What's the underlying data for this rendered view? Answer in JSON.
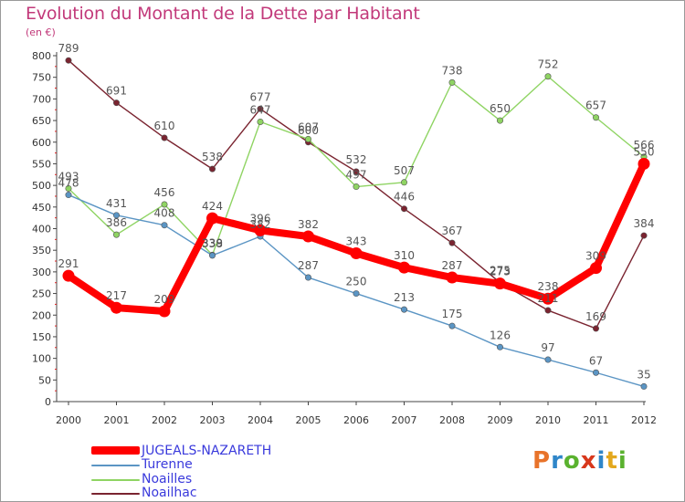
{
  "title": "Evolution du Montant de la Dette par Habitant",
  "unit_label": "(en €)",
  "logo": {
    "text": "Proxiti",
    "colors": [
      "#e8732a",
      "#2f86c9",
      "#5ab22f",
      "#d8381c",
      "#2f86c9",
      "#e3a81e",
      "#5ab22f"
    ]
  },
  "chart_data": {
    "type": "line",
    "title": "Evolution du Montant de la Dette par Habitant",
    "ylabel": "(en €)",
    "xlabel": "",
    "x": [
      "2000",
      "2001",
      "2002",
      "2003",
      "2004",
      "2005",
      "2006",
      "2007",
      "2008",
      "2009",
      "2010",
      "2011",
      "2012"
    ],
    "ylim": [
      0,
      800
    ],
    "yticks": [
      0,
      50,
      100,
      150,
      200,
      250,
      300,
      350,
      400,
      450,
      500,
      550,
      600,
      650,
      700,
      750,
      800
    ],
    "grid": false,
    "legend_position": "bottom-left",
    "series": [
      {
        "name": "Noailhac",
        "color": "#7a2430",
        "values": [
          789,
          691,
          610,
          538,
          677,
          600,
          532,
          446,
          367,
          275,
          211,
          169,
          384
        ]
      },
      {
        "name": "Noailles",
        "color": "#8fd463",
        "values": [
          493,
          386,
          456,
          339,
          647,
          607,
          497,
          507,
          738,
          650,
          752,
          657,
          566
        ]
      },
      {
        "name": "Turenne",
        "color": "#5b95c4",
        "values": [
          478,
          431,
          408,
          338,
          382,
          287,
          250,
          213,
          175,
          126,
          97,
          67,
          35
        ]
      },
      {
        "name": "JUGEALS-NAZARETH",
        "color": "#ff0000",
        "values": [
          291,
          217,
          209,
          424,
          396,
          382,
          343,
          310,
          287,
          273,
          238,
          309,
          550
        ]
      }
    ],
    "data_labels": {
      "Noailhac": [
        "789",
        "691",
        "610",
        "538",
        "677",
        "600",
        "532",
        "446",
        "367",
        "275",
        "211",
        "169",
        "384"
      ],
      "Noailles": [
        "493",
        "386",
        "456",
        "339",
        "647",
        "607",
        "497",
        "507",
        "738",
        "650",
        "752",
        "657",
        "566"
      ],
      "Turenne": [
        "478",
        "431",
        "408",
        "338",
        "382",
        "287",
        "250",
        "213",
        "175",
        "126",
        "97",
        "67",
        "35"
      ],
      "JUGEALS-NAZARETH": [
        "291",
        "217",
        "209",
        "424",
        "396",
        "382",
        "343",
        "310",
        "287",
        "273",
        "238",
        "309",
        "550"
      ]
    }
  },
  "legend": [
    {
      "label": "JUGEALS-NAZARETH",
      "color": "#ff0000",
      "thick": true
    },
    {
      "label": "Turenne",
      "color": "#5b95c4",
      "thick": false
    },
    {
      "label": "Noailles",
      "color": "#8fd463",
      "thick": false
    },
    {
      "label": "Noailhac",
      "color": "#7a2430",
      "thick": false
    }
  ]
}
